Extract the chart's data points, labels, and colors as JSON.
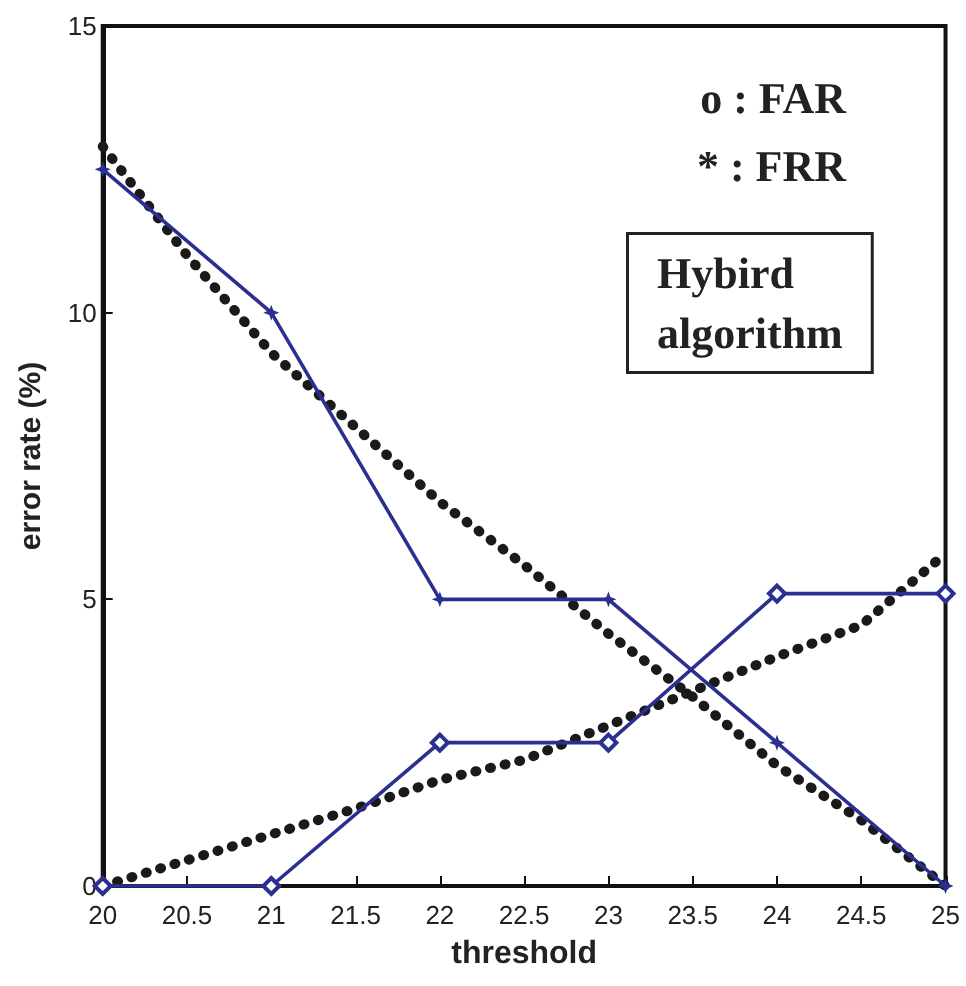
{
  "chart_data": {
    "type": "line",
    "xlabel": "threshold",
    "ylabel": "error rate (%)",
    "x": [
      20,
      21,
      22,
      23,
      24,
      25
    ],
    "series": [
      {
        "color": "#2b3090",
        "marker": "diamond",
        "line_style": "solid",
        "values": [
          0,
          0,
          2.5,
          2.5,
          5.1,
          5.1
        ]
      },
      {
        "color": "#2b3090",
        "marker": "star",
        "line_style": "solid",
        "values": [
          12.5,
          10,
          5,
          5,
          2.5,
          0
        ]
      },
      {
        "color": "#1a1a1a",
        "marker": "none",
        "line_style": "dotted",
        "x": [
          20,
          20.5,
          21,
          21.5,
          22,
          22.5,
          23,
          23.5,
          24,
          24.5,
          25
        ],
        "values": [
          12.9,
          11.0,
          9.3,
          8.0,
          6.7,
          5.6,
          4.4,
          3.3,
          2.1,
          1.15,
          0
        ]
      },
      {
        "color": "#1a1a1a",
        "marker": "none",
        "line_style": "dotted",
        "x": [
          20,
          20.5,
          21,
          21.5,
          22,
          22.5,
          23,
          23.5,
          24,
          24.5,
          25
        ],
        "values": [
          0,
          0.45,
          0.9,
          1.35,
          1.85,
          2.2,
          2.8,
          3.4,
          4.0,
          4.55,
          5.8
        ]
      }
    ],
    "annotations": [
      "o : FAR",
      "* : FRR",
      "Hybird\nalgorithm"
    ],
    "xlim": [
      20,
      25
    ],
    "xticks": [
      20,
      20.5,
      21,
      21.5,
      22,
      22.5,
      23,
      23.5,
      24,
      24.5,
      25
    ],
    "ylim": [
      0,
      15
    ],
    "yticks": [
      0,
      5,
      10,
      15
    ],
    "grid": false
  }
}
